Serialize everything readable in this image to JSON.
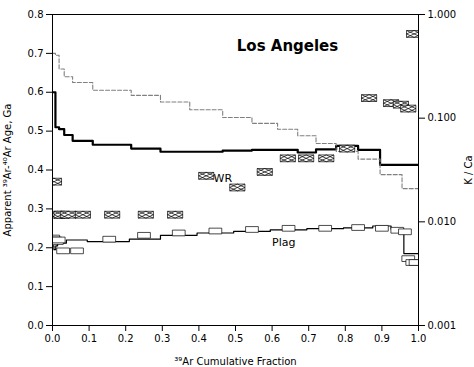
{
  "chart_data": {
    "type": "line",
    "title": "Los Angeles",
    "x_label": "³⁹Ar Cumulative Fraction",
    "y_label": "Apparent ³⁹Ar-⁴⁰Ar Age, Ga",
    "y2_label": "K / Ca",
    "xlim": [
      0.0,
      1.0
    ],
    "xticks": [
      {
        "value": 0,
        "label": "0.0"
      },
      0.1,
      0.2,
      0.3,
      0.4,
      0.5,
      0.6,
      0.7,
      0.8,
      0.9,
      {
        "value": 1,
        "label": "1.0"
      }
    ],
    "ylim": [
      0.0,
      0.8
    ],
    "yticks": [
      {
        "value": 0,
        "label": "0.0"
      },
      0.1,
      0.2,
      0.3,
      0.4,
      0.5,
      0.6,
      0.7,
      0.8
    ],
    "y2lim": [
      0.001,
      1
    ],
    "y2ticks": [
      0.001,
      {
        "value": 0.01,
        "label": "0.010"
      },
      {
        "value": 0.1,
        "label": "0.100"
      },
      {
        "value": 1,
        "label": "1.000"
      }
    ],
    "log": "y2",
    "grid": false,
    "series": [
      {
        "type": "step",
        "color": "black",
        "line_style": "solid",
        "x": [
          0.0,
          0.008,
          0.008,
          0.018,
          0.018,
          0.032,
          0.032,
          0.055,
          0.055,
          0.11,
          0.11,
          0.215,
          0.215,
          0.295,
          0.295,
          0.375,
          0.375,
          0.465,
          0.465,
          0.545,
          0.545,
          0.615,
          0.615,
          0.67,
          0.67,
          0.72,
          0.72,
          0.775,
          0.775,
          0.835,
          0.835,
          0.895,
          0.895,
          0.955,
          0.955,
          1.0
        ],
        "values": [
          0.6,
          0.6,
          0.51,
          0.51,
          0.505,
          0.505,
          0.49,
          0.49,
          0.475,
          0.475,
          0.465,
          0.465,
          0.455,
          0.455,
          0.447,
          0.447,
          0.447,
          0.447,
          0.45,
          0.45,
          0.452,
          0.452,
          0.452,
          0.452,
          0.445,
          0.445,
          0.453,
          0.453,
          0.462,
          0.462,
          0.452,
          0.452,
          0.413,
          0.413,
          0.413,
          0.413
        ]
      },
      {
        "type": "step",
        "color": "gray",
        "line_style": "dashed",
        "x": [
          0.0,
          0.008,
          0.008,
          0.018,
          0.018,
          0.032,
          0.032,
          0.055,
          0.055,
          0.11,
          0.11,
          0.215,
          0.215,
          0.295,
          0.295,
          0.375,
          0.375,
          0.465,
          0.465,
          0.545,
          0.545,
          0.615,
          0.615,
          0.67,
          0.67,
          0.72,
          0.72,
          0.775,
          0.775,
          0.835,
          0.835,
          0.895,
          0.895,
          0.955,
          0.955,
          1.0
        ],
        "values": [
          0.7,
          0.7,
          0.695,
          0.695,
          0.66,
          0.66,
          0.64,
          0.64,
          0.625,
          0.625,
          0.605,
          0.605,
          0.592,
          0.592,
          0.575,
          0.575,
          0.555,
          0.555,
          0.535,
          0.535,
          0.52,
          0.52,
          0.505,
          0.505,
          0.488,
          0.488,
          0.468,
          0.468,
          0.448,
          0.448,
          0.428,
          0.428,
          0.388,
          0.388,
          0.352,
          0.352
        ]
      },
      {
        "type": "step",
        "color": "black",
        "line_style": "solid",
        "x": [
          0.0,
          0.004,
          0.004,
          0.009,
          0.009,
          0.014,
          0.014,
          0.019,
          0.019,
          0.038,
          0.038,
          0.095,
          0.095,
          0.21,
          0.21,
          0.295,
          0.295,
          0.395,
          0.395,
          0.495,
          0.495,
          0.595,
          0.595,
          0.695,
          0.695,
          0.795,
          0.795,
          0.875,
          0.875,
          0.925,
          0.925,
          0.96,
          0.96,
          1.0
        ],
        "values": [
          0.205,
          0.205,
          0.195,
          0.195,
          0.205,
          0.205,
          0.218,
          0.218,
          0.212,
          0.212,
          0.22,
          0.22,
          0.216,
          0.216,
          0.222,
          0.222,
          0.232,
          0.232,
          0.238,
          0.238,
          0.242,
          0.242,
          0.246,
          0.246,
          0.249,
          0.249,
          0.251,
          0.251,
          0.256,
          0.256,
          0.248,
          0.248,
          0.185,
          0.185
        ]
      },
      {
        "type": "scatter",
        "color": "black",
        "marker": "hatched",
        "x": [
          0.004,
          0.013,
          0.025,
          0.043,
          0.083,
          0.163,
          0.255,
          0.335,
          0.42,
          0.505,
          0.58,
          0.643,
          0.693,
          0.748,
          0.805,
          0.865,
          0.925,
          0.952,
          0.972,
          0.988
        ],
        "values": [
          0.37,
          0.285,
          0.285,
          0.285,
          0.285,
          0.285,
          0.285,
          0.285,
          0.385,
          0.355,
          0.395,
          0.43,
          0.43,
          0.43,
          0.455,
          0.585,
          0.572,
          0.568,
          0.558,
          0.75
        ]
      },
      {
        "type": "scatter",
        "color": "black",
        "marker": "rectangle",
        "x": [
          0.002,
          0.007,
          0.012,
          0.017,
          0.029,
          0.067,
          0.155,
          0.25,
          0.345,
          0.445,
          0.545,
          0.645,
          0.745,
          0.835,
          0.9,
          0.942,
          0.963,
          0.972,
          0.983,
          0.992
        ],
        "values": [
          0.225,
          0.22,
          0.216,
          0.22,
          0.192,
          0.192,
          0.222,
          0.232,
          0.238,
          0.243,
          0.247,
          0.25,
          0.25,
          0.252,
          0.25,
          0.245,
          0.241,
          0.172,
          0.162,
          0.162
        ]
      }
    ],
    "annotations": [
      {
        "text": "WR",
        "x": 0.44,
        "y": 0.378
      },
      {
        "text": "Plag",
        "x": 0.6,
        "y": 0.213
      }
    ]
  }
}
